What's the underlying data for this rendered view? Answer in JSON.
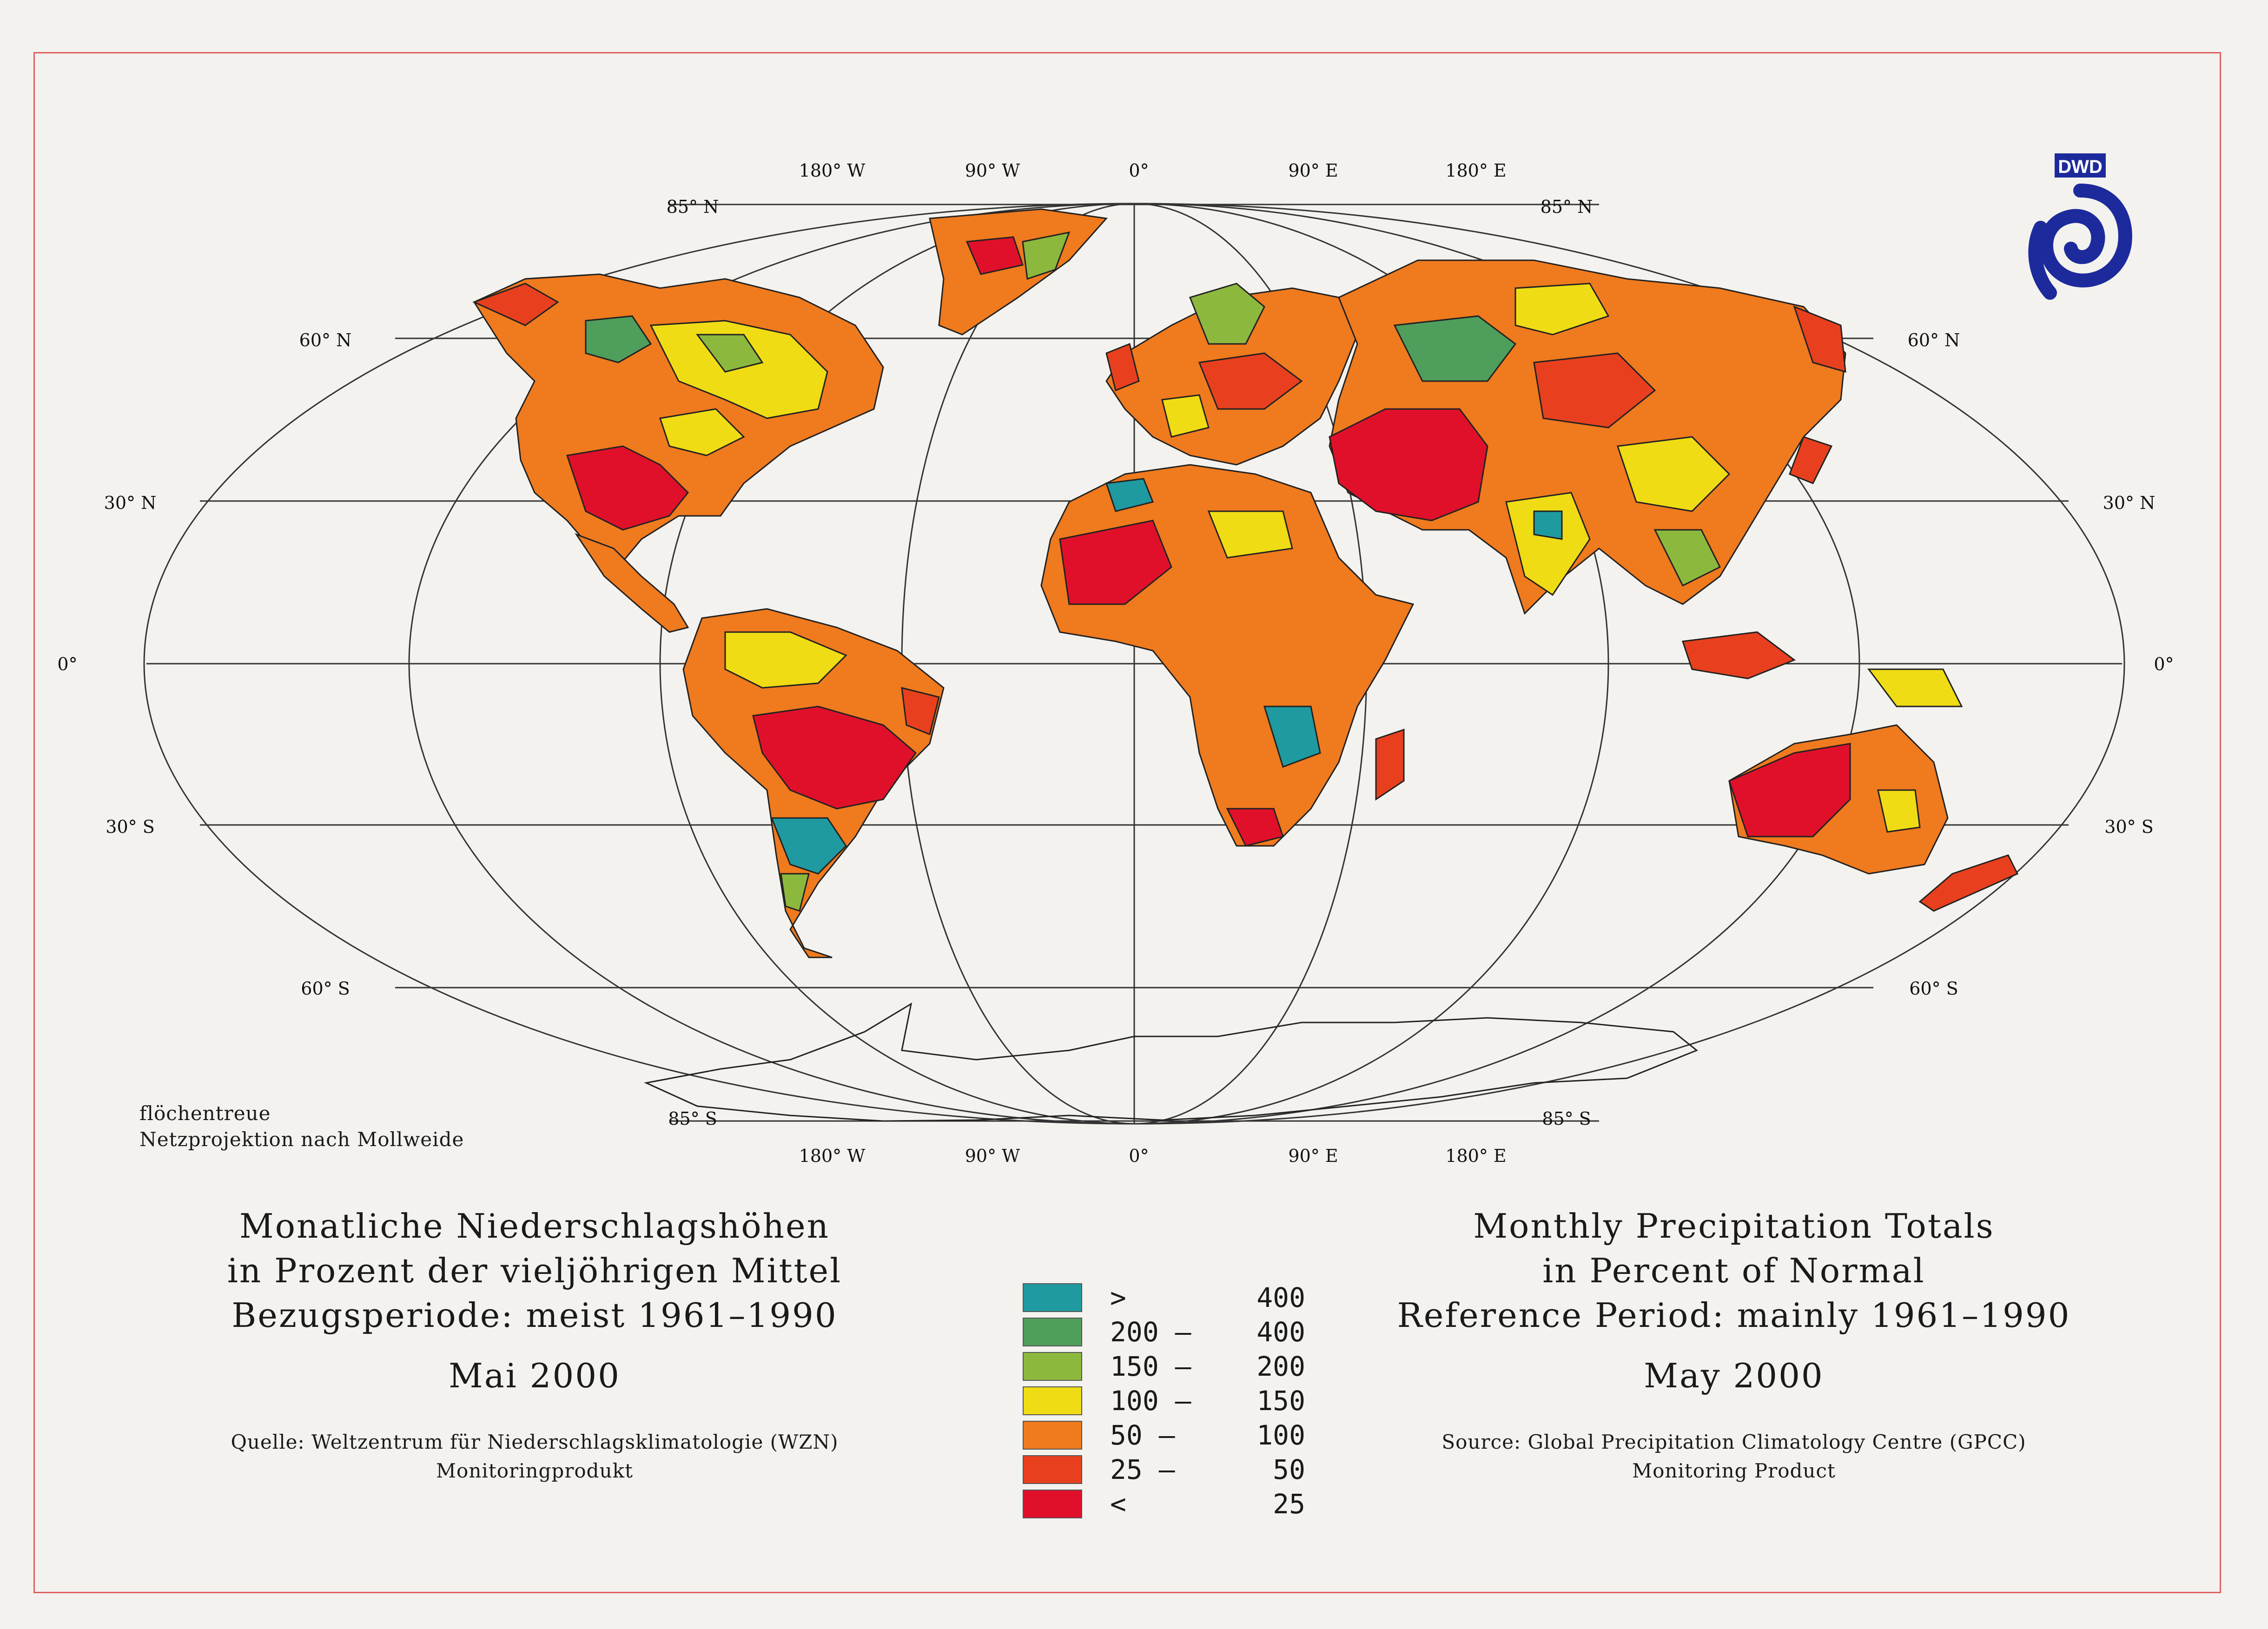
{
  "logo": {
    "text": "DWD",
    "color": "#1d2a9c"
  },
  "graticule": {
    "top_longitudes": [
      "180° W",
      "90° W",
      "0°",
      "90° E",
      "180° E"
    ],
    "bottom_longitudes": [
      "180° W",
      "90° W",
      "0°",
      "90° E",
      "180° E"
    ],
    "lat_left": [
      "85° N",
      "60° N",
      "30° N",
      "0°",
      "30° S",
      "60° S",
      "85° S"
    ],
    "lat_right": [
      "85° N",
      "60° N",
      "30° N",
      "0°",
      "30° S",
      "60° S",
      "85° S"
    ]
  },
  "projection_note": [
    "flöchentreue",
    "Netzprojektion nach Mollweide"
  ],
  "german": {
    "lines": [
      "Monatliche Niederschlagshöhen",
      "in Prozent der vieljöhrigen Mittel",
      "Bezugsperiode: meist 1961–1990"
    ],
    "month": "Mai 2000",
    "source": [
      "Quelle: Weltzentrum für Niederschlagsklimatologie (WZN)",
      "Monitoringprodukt"
    ]
  },
  "english": {
    "lines": [
      "Monthly Precipitation Totals",
      "in Percent of Normal",
      "Reference Period: mainly 1961–1990"
    ],
    "month": "May 2000",
    "source": [
      "Source: Global Precipitation Climatology Centre (GPCC)",
      "Monitoring Product"
    ]
  },
  "legend": [
    {
      "left": ">",
      "right": "400",
      "color": "#1f9aa0"
    },
    {
      "left": "200 –",
      "right": "400",
      "color": "#4f9e5c"
    },
    {
      "left": "150 –",
      "right": "200",
      "color": "#8db83e"
    },
    {
      "left": "100 –",
      "right": "150",
      "color": "#f0dc14"
    },
    {
      "left": "50 –",
      "right": "100",
      "color": "#f07a1e"
    },
    {
      "left": "25 –",
      "right": "50",
      "color": "#e8401e"
    },
    {
      "left": "<",
      "right": "25",
      "color": "#e0102a"
    }
  ],
  "map_colors": {
    "very_high": "#1f9aa0",
    "high": "#4f9e5c",
    "above": "#8db83e",
    "normal": "#f0dc14",
    "below": "#f07a1e",
    "low": "#e8401e",
    "very_low": "#e0102a"
  }
}
